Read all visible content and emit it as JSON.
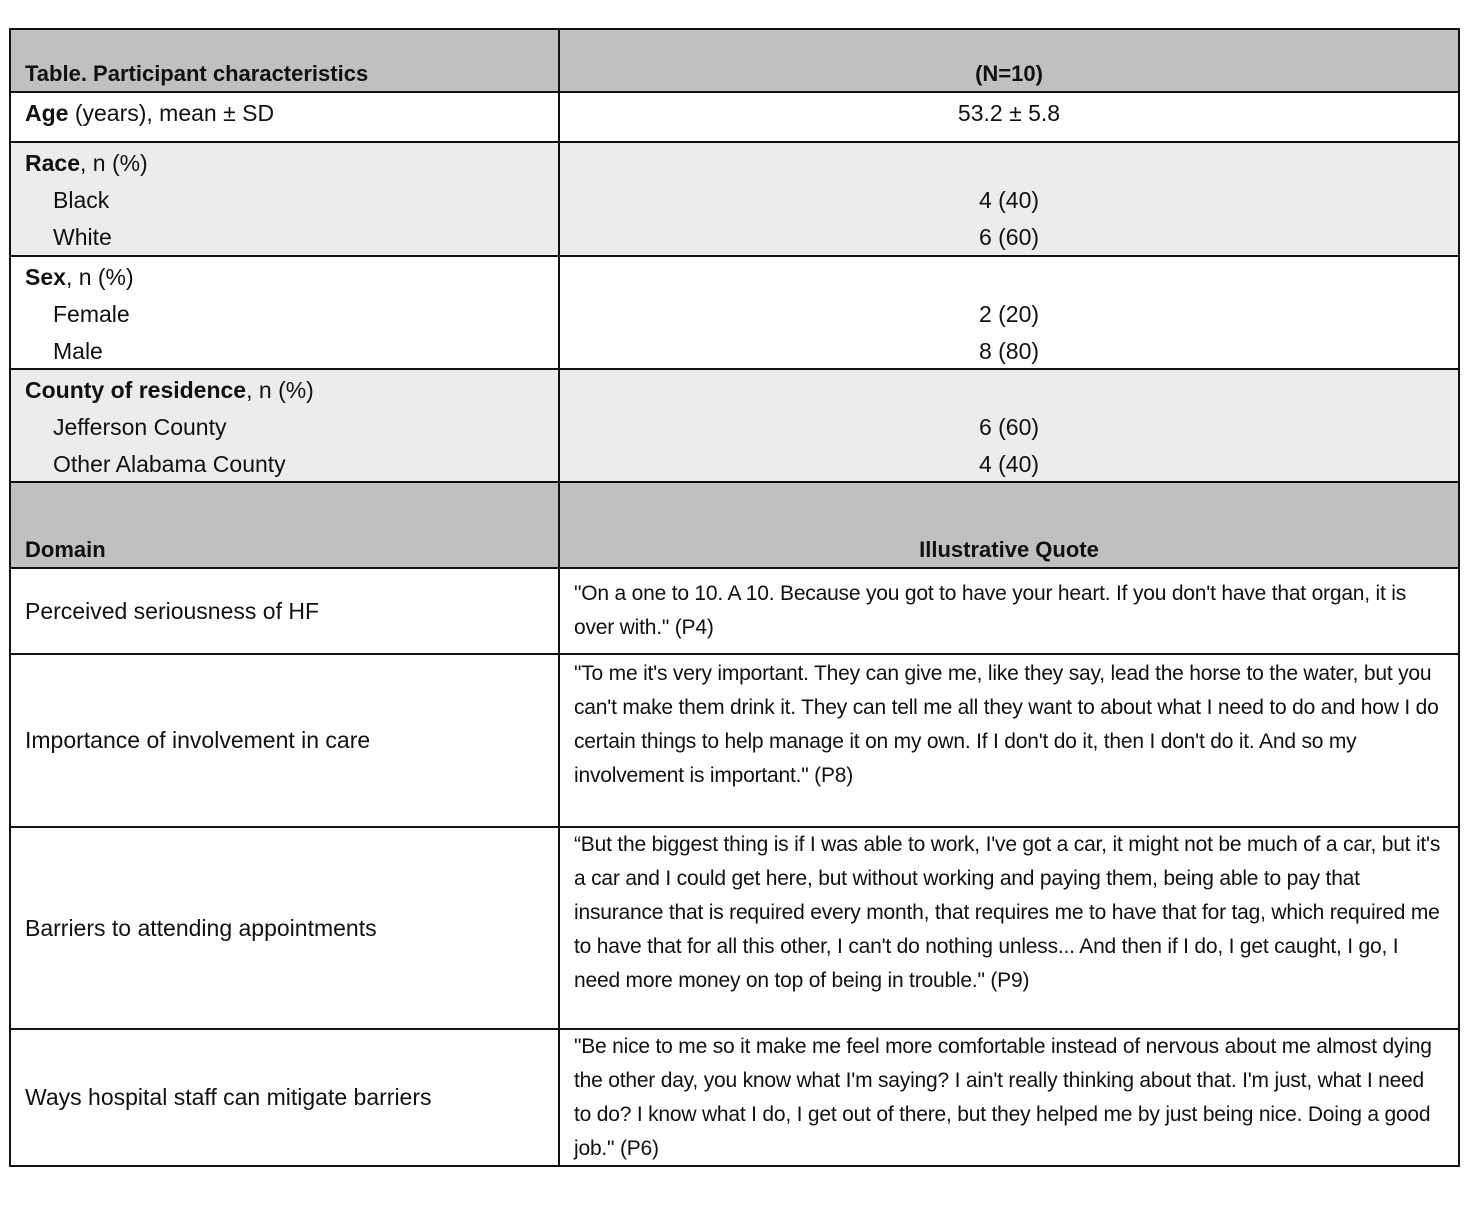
{
  "characteristics": {
    "title": "Table. Participant characteristics",
    "n_header": "(N=10)",
    "age": {
      "label_bold": "Age",
      "label_rest": " (years), mean ± SD",
      "value": "53.2  ± 5.8"
    },
    "groups": [
      {
        "label_bold": "Race",
        "label_rest": ", n (%)",
        "items": [
          {
            "label": "Black",
            "value": "4 (40)"
          },
          {
            "label": "White",
            "value": "6 (60)"
          }
        ]
      },
      {
        "label_bold": "Sex",
        "label_rest": ", n (%)",
        "items": [
          {
            "label": "Female",
            "value": "2 (20)"
          },
          {
            "label": "Male",
            "value": "8 (80)"
          }
        ]
      },
      {
        "label_bold": "County of residence",
        "label_rest": ", n (%)",
        "items": [
          {
            "label": "Jefferson County",
            "value": "6 (60)"
          },
          {
            "label": "Other Alabama County",
            "value": "4 (40)"
          }
        ]
      }
    ]
  },
  "quotes": {
    "domain_header": "Domain",
    "quote_header": "Illustrative Quote",
    "rows": [
      {
        "domain": "Perceived seriousness of HF",
        "quote": "\"On a one to 10. A 10. Because you got to have your heart. If you don't have that organ, it is over with.\" (P4)"
      },
      {
        "domain": "Importance of involvement in care",
        "quote": "\"To me it's very important. They can give me, like they say, lead the horse to the water, but you can't make them drink it. They can tell me all they want to about what I need to do and how I do certain things to help manage it on my own. If I don't do it, then I don't do it. And so my involvement is important.\" (P8)"
      },
      {
        "domain": "Barriers to attending appointments",
        "quote": "“But the biggest thing is if I was able to work, I've got a car, it might not be much of a car, but it's a car and I could get here, but without working and paying them, being able to pay that insurance that is required every month, that requires me to have that for tag, which required me to have that for all this other, I can't do nothing unless... And then if I do, I get caught, I go, I need more money on top of being in trouble.\" (P9)"
      },
      {
        "domain": "Ways hospital staff can mitigate barriers",
        "quote": "\"Be nice to me so it make me feel more comfortable instead of nervous about me almost dying the other day, you know what I'm saying? I ain't really thinking about that. I'm just, what I need to do? I know what I do, I get out of there, but they helped me by just being nice. Doing a good job.\" (P6)"
      }
    ]
  }
}
